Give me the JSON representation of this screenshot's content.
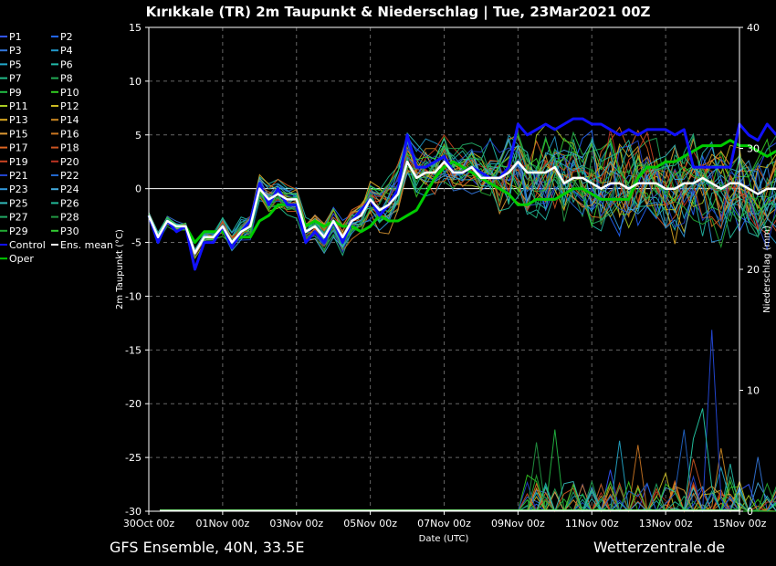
{
  "chart_data": {
    "type": "line",
    "title": "Kırıkkale  (TR)  2m Taupunkt & Niederschlag | Tue, 23Mar2021 00Z",
    "xlabel": "Date (UTC)",
    "ylabel": "2m Taupunkt (°C)",
    "y2label": "Niederschlag (mm)",
    "ylim": [
      -30,
      15
    ],
    "y2lim": [
      0,
      40
    ],
    "yticks": [
      15,
      10,
      5,
      0,
      -5,
      -10,
      -15,
      -20,
      -25,
      -30
    ],
    "y2ticks": [
      40,
      30,
      20,
      10,
      0
    ],
    "xlim_hours": [
      0,
      384
    ],
    "x_step_hours": 6,
    "xtick_labels": [
      "30Oct 00z",
      "01Nov 00z",
      "03Nov 00z",
      "05Nov 00z",
      "07Nov 00z",
      "09Nov 00z",
      "11Nov 00z",
      "13Nov 00z",
      "15Nov 00z"
    ],
    "footer_left": "GFS Ensemble, 40N, 33.5E",
    "footer_right": "Wetterzentrale.de",
    "legend": [
      {
        "label": "P1",
        "color": "#3355ff"
      },
      {
        "label": "P2",
        "color": "#2266ff"
      },
      {
        "label": "P3",
        "color": "#3377dd"
      },
      {
        "label": "P4",
        "color": "#2299cc"
      },
      {
        "label": "P5",
        "color": "#22aacc"
      },
      {
        "label": "P6",
        "color": "#22bbaa"
      },
      {
        "label": "P7",
        "color": "#22bb88"
      },
      {
        "label": "P8",
        "color": "#22aa55"
      },
      {
        "label": "P9",
        "color": "#22bb44"
      },
      {
        "label": "P10",
        "color": "#33cc22"
      },
      {
        "label": "P11",
        "color": "#aacc22"
      },
      {
        "label": "P12",
        "color": "#ccbb22"
      },
      {
        "label": "P13",
        "color": "#ddaa22"
      },
      {
        "label": "P14",
        "color": "#cc8822"
      },
      {
        "label": "P15",
        "color": "#dd9933"
      },
      {
        "label": "P16",
        "color": "#cc7722"
      },
      {
        "label": "P17",
        "color": "#dd6622"
      },
      {
        "label": "P18",
        "color": "#cc5522"
      },
      {
        "label": "P19",
        "color": "#cc4422"
      },
      {
        "label": "P20",
        "color": "#bb3322"
      },
      {
        "label": "P21",
        "color": "#2244cc"
      },
      {
        "label": "P22",
        "color": "#2266cc"
      },
      {
        "label": "P23",
        "color": "#3399dd"
      },
      {
        "label": "P24",
        "color": "#44aadd"
      },
      {
        "label": "P25",
        "color": "#33bbbb"
      },
      {
        "label": "P26",
        "color": "#22bb99"
      },
      {
        "label": "P27",
        "color": "#22aa66"
      },
      {
        "label": "P28",
        "color": "#229944"
      },
      {
        "label": "P29",
        "color": "#22aa33"
      },
      {
        "label": "P30",
        "color": "#33cc33"
      },
      {
        "label": "Control",
        "color": "#1111ff"
      },
      {
        "label": "Ens. mean",
        "color": "#ffffff"
      },
      {
        "label": "Oper",
        "color": "#00cc00"
      }
    ],
    "series": [
      {
        "name": "Control",
        "color": "#1111ff",
        "width": 3,
        "values": [
          -2.5,
          -5,
          -3,
          -4,
          -3.5,
          -7.5,
          -5,
          -5,
          -3.5,
          -5.5,
          -4,
          -3,
          0.5,
          -1.5,
          0,
          -1.5,
          -1.5,
          -5,
          -4,
          -5,
          -3,
          -5,
          -3,
          -2,
          -1,
          -2.5,
          -1.5,
          0,
          5,
          2,
          2,
          2.5,
          3,
          1.5,
          1.5,
          2,
          1.5,
          1,
          1,
          2,
          6,
          5,
          5.5,
          6,
          5.5,
          6,
          6.5,
          6.5,
          6,
          6,
          5.5,
          5,
          5.5,
          5,
          5.5,
          5.5,
          5.5,
          5,
          5.5,
          2,
          2,
          2,
          2,
          2,
          6,
          5,
          4.5,
          6,
          5
        ]
      },
      {
        "name": "Oper",
        "color": "#00cc00",
        "width": 3,
        "values": [
          -2.5,
          -5,
          -3,
          -3.5,
          -3.5,
          -5,
          -4,
          -4,
          -4,
          -5,
          -4.5,
          -4.5,
          -3,
          -2.5,
          -1.5,
          -1.5,
          -1.5,
          -3.5,
          -3,
          -3.5,
          -3,
          -3.5,
          -3.5,
          -4,
          -3.5,
          -2.5,
          -3,
          -3,
          -2.5,
          -2,
          -0.5,
          1,
          2,
          2.5,
          2,
          1.5,
          1,
          0.5,
          0,
          -0.5,
          -1.5,
          -1.5,
          -1,
          -1,
          -1,
          -0.5,
          0,
          0,
          -0.5,
          -1,
          -1,
          -1,
          -1,
          1,
          2,
          2,
          2.5,
          2.5,
          3,
          3.5,
          4,
          4,
          4,
          4.5,
          4,
          4,
          3.5,
          3,
          3.5
        ]
      },
      {
        "name": "Ens. mean",
        "color": "#ffffff",
        "width": 2.5,
        "values": [
          -2.5,
          -4.5,
          -3,
          -3.5,
          -3.5,
          -6,
          -4.5,
          -4.5,
          -3.5,
          -5,
          -4,
          -3.5,
          0,
          -1,
          -0.5,
          -1,
          -1,
          -4,
          -3.5,
          -4.5,
          -3,
          -4.5,
          -3,
          -2.5,
          -1,
          -2,
          -1.5,
          -0.5,
          2.5,
          1,
          1.5,
          1.5,
          2.5,
          1.5,
          1.5,
          2,
          1,
          1,
          1,
          1.5,
          2.5,
          1.5,
          1.5,
          1.5,
          2,
          0.5,
          1,
          1,
          0.5,
          0,
          0.5,
          0.5,
          0,
          0.5,
          0.5,
          0.5,
          0,
          0,
          0.5,
          0.5,
          1,
          0.5,
          0,
          0.5,
          0.5,
          0,
          -0.5,
          0,
          0
        ]
      }
    ],
    "precip_notes": "Member precipitation mostly 0 mm; scattered spikes after 07Nov up to ~16 mm near 14Nov."
  }
}
